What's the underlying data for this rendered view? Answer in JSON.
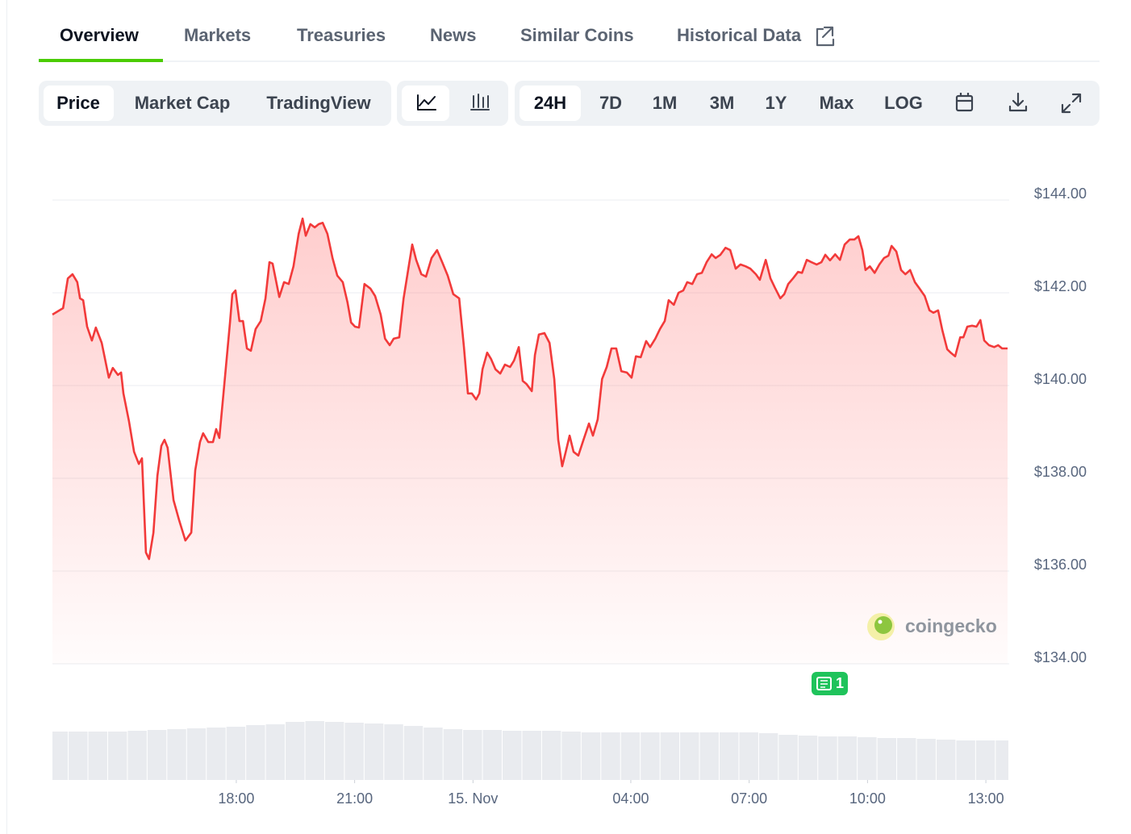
{
  "tabs": [
    "Overview",
    "Markets",
    "Treasuries",
    "News",
    "Similar Coins",
    "Historical Data"
  ],
  "view_toggle": [
    "Price",
    "Market Cap",
    "TradingView"
  ],
  "ranges": [
    "24H",
    "7D",
    "1M",
    "3M",
    "1Y",
    "Max",
    "LOG"
  ],
  "watermark": "coingecko",
  "news_badge": "1",
  "chart_data": {
    "type": "line",
    "xlim": [
      13.34,
      37.55
    ],
    "ylim": [
      134,
      144
    ],
    "xticks": [
      {
        "value": 18,
        "label": "18:00"
      },
      {
        "value": 21,
        "label": "21:00"
      },
      {
        "value": 24,
        "label": "15. Nov"
      },
      {
        "value": 28,
        "label": "04:00"
      },
      {
        "value": 31,
        "label": "07:00"
      },
      {
        "value": 34,
        "label": "10:00"
      },
      {
        "value": 37,
        "label": "13:00"
      }
    ],
    "yticks": [
      {
        "value": 134,
        "label": "$134.00"
      },
      {
        "value": 136,
        "label": "$136.00"
      },
      {
        "value": 138,
        "label": "$138.00"
      },
      {
        "value": 140,
        "label": "$140.00"
      },
      {
        "value": 142,
        "label": "$142.00"
      },
      {
        "value": 144,
        "label": "$144.00"
      }
    ],
    "grid": true,
    "x": [
      13.34,
      13.61,
      13.73,
      13.85,
      13.97,
      14.04,
      14.12,
      14.22,
      14.34,
      14.44,
      14.59,
      14.77,
      14.87,
      15.0,
      15.08,
      15.14,
      15.28,
      15.41,
      15.53,
      15.61,
      15.71,
      15.79,
      15.9,
      16.0,
      16.1,
      16.18,
      16.26,
      16.41,
      16.55,
      16.71,
      16.86,
      16.96,
      17.08,
      17.16,
      17.29,
      17.41,
      17.49,
      17.57,
      17.7,
      17.84,
      17.9,
      17.98,
      18.08,
      18.17,
      18.27,
      18.37,
      18.49,
      18.62,
      18.74,
      18.84,
      18.92,
      19.09,
      19.21,
      19.33,
      19.45,
      19.58,
      19.68,
      19.76,
      19.88,
      19.99,
      20.09,
      20.19,
      20.31,
      20.44,
      20.56,
      20.7,
      20.82,
      20.91,
      21.01,
      21.11,
      21.25,
      21.4,
      21.52,
      21.66,
      21.77,
      21.89,
      21.99,
      22.13,
      22.24,
      22.34,
      22.46,
      22.56,
      22.69,
      22.81,
      22.95,
      23.09,
      23.22,
      23.36,
      23.5,
      23.65,
      23.77,
      23.87,
      23.97,
      24.08,
      24.16,
      24.24,
      24.36,
      24.46,
      24.57,
      24.69,
      24.81,
      24.94,
      25.04,
      25.16,
      25.26,
      25.36,
      25.49,
      25.57,
      25.67,
      25.81,
      25.94,
      26.06,
      26.16,
      26.26,
      26.35,
      26.45,
      26.55,
      26.67,
      26.8,
      26.94,
      27.04,
      27.16,
      27.27,
      27.39,
      27.51,
      27.63,
      27.76,
      27.9,
      28.02,
      28.13,
      28.25,
      28.39,
      28.49,
      28.62,
      28.74,
      28.86,
      28.96,
      29.09,
      29.21,
      29.33,
      29.43,
      29.56,
      29.68,
      29.8,
      29.92,
      30.05,
      30.15,
      30.27,
      30.4,
      30.52,
      30.66,
      30.78,
      30.91,
      31.03,
      31.17,
      31.27,
      31.42,
      31.54,
      31.66,
      31.79,
      31.89,
      31.99,
      32.11,
      32.24,
      32.34,
      32.46,
      32.58,
      32.71,
      32.83,
      32.93,
      33.05,
      33.18,
      33.3,
      33.42,
      33.55,
      33.67,
      33.77,
      33.87,
      33.95,
      34.06,
      34.18,
      34.3,
      34.42,
      34.53,
      34.61,
      34.73,
      34.85,
      34.96,
      35.08,
      35.2,
      35.32,
      35.45,
      35.57,
      35.67,
      35.79,
      35.9,
      36.02,
      36.12,
      36.22,
      36.35,
      36.43,
      36.53,
      36.65,
      36.76,
      36.86,
      36.96,
      37.08,
      37.21,
      37.31,
      37.41,
      37.55
    ],
    "series": [
      {
        "color": "#f23a3a",
        "values": [
          141.53,
          141.67,
          142.31,
          142.4,
          142.23,
          141.88,
          141.84,
          141.27,
          140.97,
          141.25,
          140.92,
          140.17,
          140.38,
          140.23,
          140.28,
          139.83,
          139.23,
          138.57,
          138.31,
          138.43,
          136.4,
          136.26,
          136.83,
          138.05,
          138.7,
          138.83,
          138.66,
          137.53,
          137.1,
          136.66,
          136.83,
          138.17,
          138.78,
          138.97,
          138.78,
          138.78,
          139.06,
          138.87,
          140.05,
          141.36,
          141.97,
          142.05,
          141.39,
          141.39,
          140.8,
          140.75,
          141.22,
          141.39,
          141.88,
          142.66,
          142.63,
          141.91,
          142.23,
          142.19,
          142.57,
          143.27,
          143.6,
          143.23,
          143.48,
          143.41,
          143.48,
          143.51,
          143.27,
          142.75,
          142.37,
          142.23,
          141.79,
          141.36,
          141.27,
          141.25,
          142.19,
          142.09,
          141.93,
          141.53,
          141.01,
          140.87,
          141.01,
          141.04,
          141.88,
          142.4,
          143.04,
          142.71,
          142.4,
          142.35,
          142.75,
          142.92,
          142.66,
          142.37,
          141.97,
          141.88,
          140.83,
          139.83,
          139.83,
          139.7,
          139.83,
          140.35,
          140.71,
          140.57,
          140.35,
          140.26,
          140.45,
          140.4,
          140.54,
          140.83,
          140.1,
          140.03,
          139.88,
          140.66,
          141.1,
          141.13,
          140.92,
          140.14,
          138.83,
          138.26,
          138.57,
          138.92,
          138.57,
          138.49,
          138.83,
          139.18,
          138.92,
          139.27,
          140.14,
          140.4,
          140.8,
          140.8,
          140.31,
          140.28,
          140.17,
          140.63,
          140.61,
          140.96,
          140.83,
          141.01,
          141.22,
          141.39,
          141.84,
          141.74,
          142.0,
          142.05,
          142.23,
          142.19,
          142.4,
          142.43,
          142.66,
          142.83,
          142.75,
          142.82,
          142.97,
          142.92,
          142.52,
          142.61,
          142.57,
          142.52,
          142.4,
          142.28,
          142.71,
          142.31,
          142.1,
          141.88,
          141.97,
          142.19,
          142.31,
          142.45,
          142.43,
          142.71,
          142.66,
          142.61,
          142.66,
          142.82,
          142.7,
          142.83,
          142.71,
          143.04,
          143.15,
          143.15,
          143.22,
          142.92,
          142.49,
          142.57,
          142.43,
          142.61,
          142.75,
          142.8,
          143.01,
          142.89,
          142.49,
          142.4,
          142.49,
          142.23,
          142.09,
          141.93,
          141.62,
          141.57,
          141.62,
          141.18,
          140.78,
          140.7,
          140.63,
          141.04,
          141.04,
          141.27,
          141.29,
          141.27,
          141.41,
          140.97,
          140.87,
          140.83,
          140.87,
          140.8,
          140.8
        ]
      }
    ],
    "volume": {
      "color": "#e9ebef",
      "ylim": [
        0,
        75
      ],
      "x": [
        13.5,
        14,
        14.5,
        15,
        15.5,
        16,
        16.5,
        17,
        17.5,
        18,
        18.5,
        19,
        19.5,
        20,
        20.5,
        21,
        21.5,
        22,
        22.5,
        23,
        23.5,
        24,
        24.5,
        25,
        25.5,
        26,
        26.5,
        27,
        27.5,
        28,
        28.5,
        29,
        29.5,
        30,
        30.5,
        31,
        31.5,
        32,
        32.5,
        33,
        33.5,
        34,
        34.5,
        35,
        35.5,
        36,
        36.5,
        37,
        37.5
      ],
      "values": [
        60,
        60,
        60,
        60,
        61,
        62,
        63,
        64,
        65,
        66,
        68,
        69,
        72,
        73,
        72,
        71,
        70,
        69,
        67,
        65,
        63,
        62,
        62,
        61,
        61,
        61,
        60,
        59,
        59,
        59,
        59,
        59,
        59,
        59,
        59,
        59,
        58,
        56,
        55,
        54,
        54,
        53,
        52,
        52,
        51,
        50,
        49,
        49,
        49
      ]
    }
  }
}
